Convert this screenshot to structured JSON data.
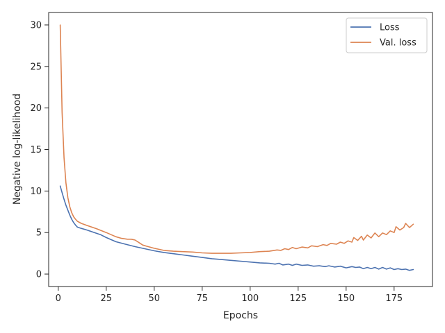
{
  "chart_data": {
    "type": "line",
    "title": "",
    "xlabel": "Epochs",
    "ylabel": "Negative log-likelihood",
    "xlim": [
      -5,
      195
    ],
    "ylim": [
      -1.5,
      31.5
    ],
    "xticks": [
      0,
      25,
      50,
      75,
      100,
      125,
      150,
      175
    ],
    "yticks": [
      0,
      5,
      10,
      15,
      20,
      25,
      30
    ],
    "grid": false,
    "legend_position": "top-right",
    "series": [
      {
        "name": "Loss",
        "color": "#4c72b0",
        "points": [
          [
            1,
            10.6
          ],
          [
            2,
            9.8
          ],
          [
            3,
            9.0
          ],
          [
            4,
            8.3
          ],
          [
            5,
            7.7
          ],
          [
            6,
            7.1
          ],
          [
            7,
            6.6
          ],
          [
            8,
            6.2
          ],
          [
            9,
            5.9
          ],
          [
            10,
            5.65
          ],
          [
            12,
            5.5
          ],
          [
            15,
            5.3
          ],
          [
            20,
            4.9
          ],
          [
            22,
            4.75
          ],
          [
            25,
            4.4
          ],
          [
            30,
            3.9
          ],
          [
            35,
            3.6
          ],
          [
            40,
            3.3
          ],
          [
            45,
            3.05
          ],
          [
            50,
            2.8
          ],
          [
            55,
            2.6
          ],
          [
            60,
            2.45
          ],
          [
            65,
            2.3
          ],
          [
            70,
            2.15
          ],
          [
            75,
            2.0
          ],
          [
            80,
            1.85
          ],
          [
            85,
            1.75
          ],
          [
            90,
            1.65
          ],
          [
            95,
            1.55
          ],
          [
            100,
            1.45
          ],
          [
            105,
            1.35
          ],
          [
            110,
            1.3
          ],
          [
            113,
            1.2
          ],
          [
            115,
            1.3
          ],
          [
            117,
            1.1
          ],
          [
            120,
            1.2
          ],
          [
            122,
            1.05
          ],
          [
            124,
            1.2
          ],
          [
            127,
            1.05
          ],
          [
            130,
            1.1
          ],
          [
            133,
            0.95
          ],
          [
            136,
            1.0
          ],
          [
            139,
            0.9
          ],
          [
            141,
            1.0
          ],
          [
            144,
            0.85
          ],
          [
            147,
            0.95
          ],
          [
            150,
            0.75
          ],
          [
            153,
            0.9
          ],
          [
            155,
            0.8
          ],
          [
            157,
            0.85
          ],
          [
            159,
            0.65
          ],
          [
            161,
            0.8
          ],
          [
            163,
            0.65
          ],
          [
            165,
            0.8
          ],
          [
            167,
            0.6
          ],
          [
            169,
            0.8
          ],
          [
            171,
            0.6
          ],
          [
            173,
            0.75
          ],
          [
            175,
            0.55
          ],
          [
            177,
            0.65
          ],
          [
            179,
            0.55
          ],
          [
            181,
            0.6
          ],
          [
            183,
            0.45
          ],
          [
            185,
            0.55
          ]
        ]
      },
      {
        "name": "Val. loss",
        "color": "#dd8452",
        "points": [
          [
            1,
            30.0
          ],
          [
            2,
            19.5
          ],
          [
            3,
            14.0
          ],
          [
            4,
            11.0
          ],
          [
            5,
            9.2
          ],
          [
            6,
            8.1
          ],
          [
            7,
            7.4
          ],
          [
            8,
            6.9
          ],
          [
            9,
            6.6
          ],
          [
            10,
            6.35
          ],
          [
            12,
            6.1
          ],
          [
            15,
            5.85
          ],
          [
            20,
            5.45
          ],
          [
            25,
            5.0
          ],
          [
            28,
            4.7
          ],
          [
            30,
            4.5
          ],
          [
            33,
            4.3
          ],
          [
            36,
            4.2
          ],
          [
            38,
            4.2
          ],
          [
            40,
            4.1
          ],
          [
            42,
            3.8
          ],
          [
            44,
            3.5
          ],
          [
            46,
            3.35
          ],
          [
            50,
            3.1
          ],
          [
            55,
            2.85
          ],
          [
            60,
            2.75
          ],
          [
            70,
            2.65
          ],
          [
            75,
            2.55
          ],
          [
            80,
            2.5
          ],
          [
            85,
            2.5
          ],
          [
            90,
            2.5
          ],
          [
            95,
            2.55
          ],
          [
            100,
            2.6
          ],
          [
            105,
            2.7
          ],
          [
            110,
            2.75
          ],
          [
            114,
            2.9
          ],
          [
            116,
            2.85
          ],
          [
            118,
            3.05
          ],
          [
            120,
            2.95
          ],
          [
            122,
            3.2
          ],
          [
            124,
            3.05
          ],
          [
            127,
            3.25
          ],
          [
            130,
            3.15
          ],
          [
            132,
            3.4
          ],
          [
            135,
            3.3
          ],
          [
            138,
            3.55
          ],
          [
            140,
            3.45
          ],
          [
            142,
            3.7
          ],
          [
            145,
            3.6
          ],
          [
            147,
            3.85
          ],
          [
            149,
            3.7
          ],
          [
            151,
            4.0
          ],
          [
            153,
            3.85
          ],
          [
            154,
            4.4
          ],
          [
            156,
            4.05
          ],
          [
            158,
            4.55
          ],
          [
            159,
            4.1
          ],
          [
            161,
            4.7
          ],
          [
            163,
            4.35
          ],
          [
            165,
            4.95
          ],
          [
            167,
            4.5
          ],
          [
            169,
            4.95
          ],
          [
            171,
            4.75
          ],
          [
            173,
            5.2
          ],
          [
            175,
            5.0
          ],
          [
            176,
            5.7
          ],
          [
            178,
            5.3
          ],
          [
            180,
            5.6
          ],
          [
            181,
            6.1
          ],
          [
            183,
            5.6
          ],
          [
            185,
            6.0
          ]
        ]
      }
    ]
  }
}
